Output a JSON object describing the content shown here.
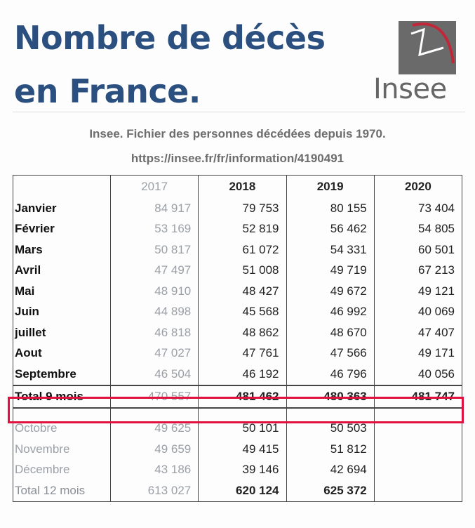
{
  "title_line1": "Nombre de décès",
  "title_line2": "en France.",
  "logo_text": "Insee",
  "source_line1": "Insee. Fichier des personnes décédées depuis 1970.",
  "source_line2": "https://insee.fr/fr/information/4190491",
  "colors": {
    "title": "#2b5080",
    "highlight": "#e0113f",
    "muted": "#9aa0a6"
  },
  "headers": [
    "2017",
    "2018",
    "2019",
    "2020"
  ],
  "rows": [
    {
      "label": "Janvier",
      "v": [
        "84 917",
        "79 753",
        "80 155",
        "73 404"
      ]
    },
    {
      "label": "Février",
      "v": [
        "53 169",
        "52 819",
        "56 462",
        "54 805"
      ]
    },
    {
      "label": "Mars",
      "v": [
        "50 817",
        "61 072",
        "54 331",
        "60 501"
      ]
    },
    {
      "label": "Avril",
      "v": [
        "47 497",
        "51 008",
        "49 719",
        "67 213"
      ]
    },
    {
      "label": "Mai",
      "v": [
        "48 910",
        "48 427",
        "49 672",
        "49 121"
      ]
    },
    {
      "label": "Juin",
      "v": [
        "44 898",
        "45 568",
        "46 992",
        "40 069"
      ]
    },
    {
      "label": "juillet",
      "v": [
        "46 818",
        "48 862",
        "48 670",
        "47 407"
      ]
    },
    {
      "label": "Aout",
      "v": [
        "47 027",
        "47 761",
        "47 566",
        "49 171"
      ]
    },
    {
      "label": "Septembre",
      "v": [
        "46 504",
        "46 192",
        "46 796",
        "40 056"
      ]
    }
  ],
  "total9": {
    "label": "Total 9 mois",
    "v": [
      "470 557",
      "481 462",
      "480 363",
      "481 747"
    ]
  },
  "later_rows": [
    {
      "label": "Octobre",
      "v": [
        "49 625",
        "50 101",
        "50 503",
        ""
      ]
    },
    {
      "label": "Novembre",
      "v": [
        "49 659",
        "49 415",
        "51 812",
        ""
      ]
    },
    {
      "label": "Décembre",
      "v": [
        "43 186",
        "39 146",
        "42 694",
        ""
      ]
    }
  ],
  "total12": {
    "label": "Total 12 mois",
    "v": [
      "613 027",
      "620 124",
      "625 372",
      ""
    ]
  }
}
